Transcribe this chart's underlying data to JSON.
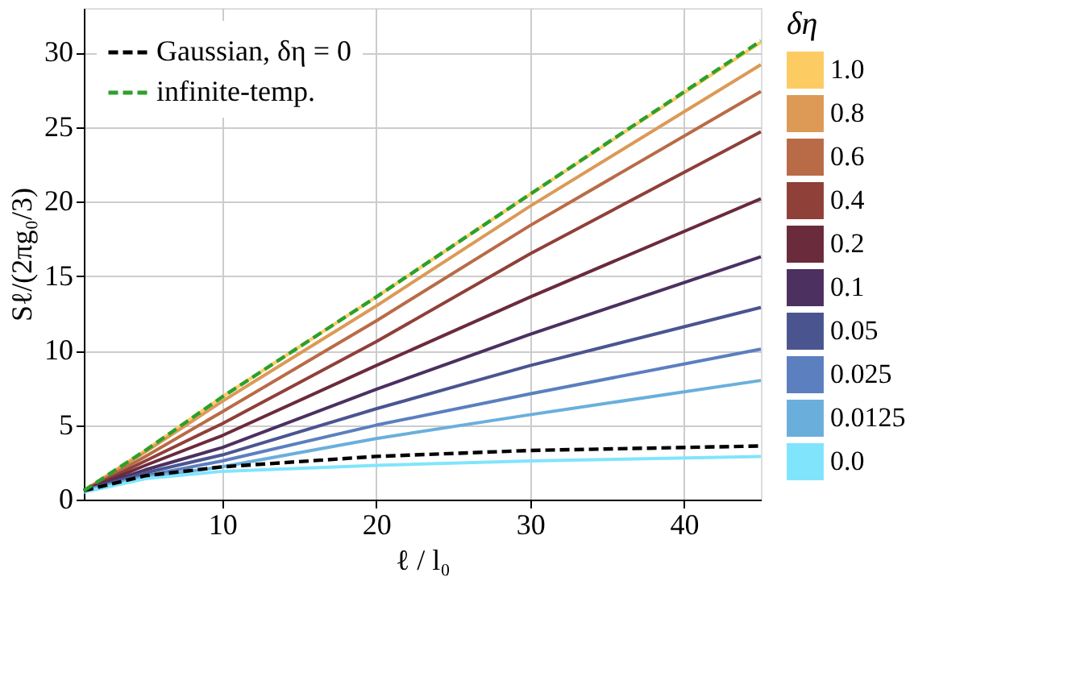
{
  "chart_data": {
    "type": "line",
    "xlabel": "ℓ / l₀",
    "ylabel": "Sℓ/(2πg₀/3)",
    "legend_title": "δη",
    "x": [
      1,
      5,
      10,
      20,
      30,
      45
    ],
    "xlim": [
      1,
      45
    ],
    "xticks": [
      10,
      20,
      30,
      40
    ],
    "ylim": [
      0,
      33
    ],
    "yticks": [
      0,
      5,
      10,
      15,
      20,
      25,
      30
    ],
    "grid": true,
    "legend": "right",
    "marker": "none",
    "series": [
      {
        "name": "1.0",
        "color": "#fccb62",
        "line_style": "solid",
        "values": [
          0.6,
          3.3,
          6.9,
          13.6,
          20.5,
          30.7
        ]
      },
      {
        "name": "0.8",
        "color": "#dc9a56",
        "line_style": "solid",
        "values": [
          0.6,
          3.2,
          6.6,
          13.0,
          19.7,
          29.2
        ]
      },
      {
        "name": "0.6",
        "color": "#b96b47",
        "line_style": "solid",
        "values": [
          0.6,
          2.9,
          5.9,
          12.0,
          18.4,
          27.4
        ]
      },
      {
        "name": "0.4",
        "color": "#8f4039",
        "line_style": "solid",
        "values": [
          0.6,
          2.6,
          5.1,
          10.6,
          16.5,
          24.7
        ]
      },
      {
        "name": "0.2",
        "color": "#6a2b3c",
        "line_style": "solid",
        "values": [
          0.6,
          2.3,
          4.3,
          9.0,
          13.6,
          20.2
        ]
      },
      {
        "name": "0.1",
        "color": "#4b3060",
        "line_style": "solid",
        "values": [
          0.6,
          2.0,
          3.5,
          7.4,
          11.1,
          16.3
        ]
      },
      {
        "name": "0.05",
        "color": "#4a5590",
        "line_style": "solid",
        "values": [
          0.6,
          1.8,
          3.0,
          6.1,
          9.0,
          12.9
        ]
      },
      {
        "name": "0.025",
        "color": "#5b7fbf",
        "line_style": "solid",
        "values": [
          0.6,
          1.6,
          2.6,
          5.0,
          7.1,
          10.1
        ]
      },
      {
        "name": "0.0125",
        "color": "#6aafdc",
        "line_style": "solid",
        "values": [
          0.6,
          1.5,
          2.2,
          4.1,
          5.7,
          8.0
        ]
      },
      {
        "name": "0.0",
        "color": "#80e5fc",
        "line_style": "solid",
        "values": [
          0.5,
          1.4,
          1.9,
          2.3,
          2.6,
          2.9
        ]
      },
      {
        "name": "Gaussian, δη = 0",
        "color": "#000000",
        "line_style": "dashed",
        "values": [
          0.6,
          1.6,
          2.2,
          2.9,
          3.3,
          3.6
        ]
      },
      {
        "name": "infinite-temp.",
        "color": "#2ca02c",
        "line_style": "dashed",
        "values": [
          0.6,
          3.3,
          6.9,
          13.6,
          20.5,
          30.8
        ]
      }
    ]
  }
}
